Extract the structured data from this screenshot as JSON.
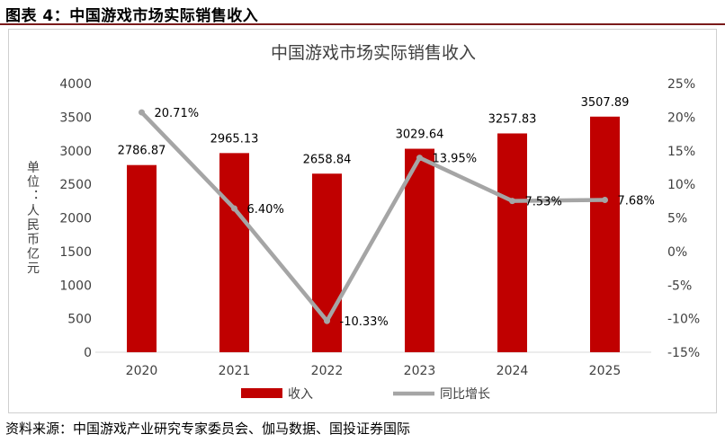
{
  "figure": {
    "caption": "图表 4：中国游戏市场实际销售收入",
    "source": "资料来源：中国游戏产业研究专家委员会、伽马数据、国投证券国际"
  },
  "colors": {
    "bar": "#c00000",
    "line": "#a5a5a5",
    "text": "#404040",
    "axis": "#d9d9d9"
  },
  "chart_data": {
    "type": "bar",
    "title": "中国游戏市场实际销售收入",
    "ylabel": "单位：人民币亿元",
    "categories": [
      "2020",
      "2021",
      "2022",
      "2023",
      "2024",
      "2025"
    ],
    "y_ticks": [
      "0",
      "500",
      "1000",
      "1500",
      "2000",
      "2500",
      "3000",
      "3500",
      "4000"
    ],
    "y2_ticks": [
      "-15%",
      "-10%",
      "-5%",
      "0%",
      "5%",
      "10%",
      "15%",
      "20%",
      "25%"
    ],
    "ylim": [
      0,
      4000
    ],
    "y2lim": [
      -15,
      25
    ],
    "series": [
      {
        "name": "收入",
        "type": "bar",
        "axis": "left",
        "values": [
          2786.87,
          2965.13,
          2658.84,
          3029.64,
          3257.83,
          3507.89
        ],
        "labels": [
          "2786.87",
          "2965.13",
          "2658.84",
          "3029.64",
          "3257.83",
          "3507.89"
        ]
      },
      {
        "name": "同比增长",
        "type": "line",
        "axis": "right",
        "values": [
          20.71,
          6.4,
          -10.33,
          13.95,
          7.53,
          7.68
        ],
        "labels": [
          "20.71%",
          "6.40%",
          "-10.33%",
          "13.95%",
          "7.53%",
          "7.68%"
        ]
      }
    ],
    "legend": "bottom",
    "grid": false
  }
}
